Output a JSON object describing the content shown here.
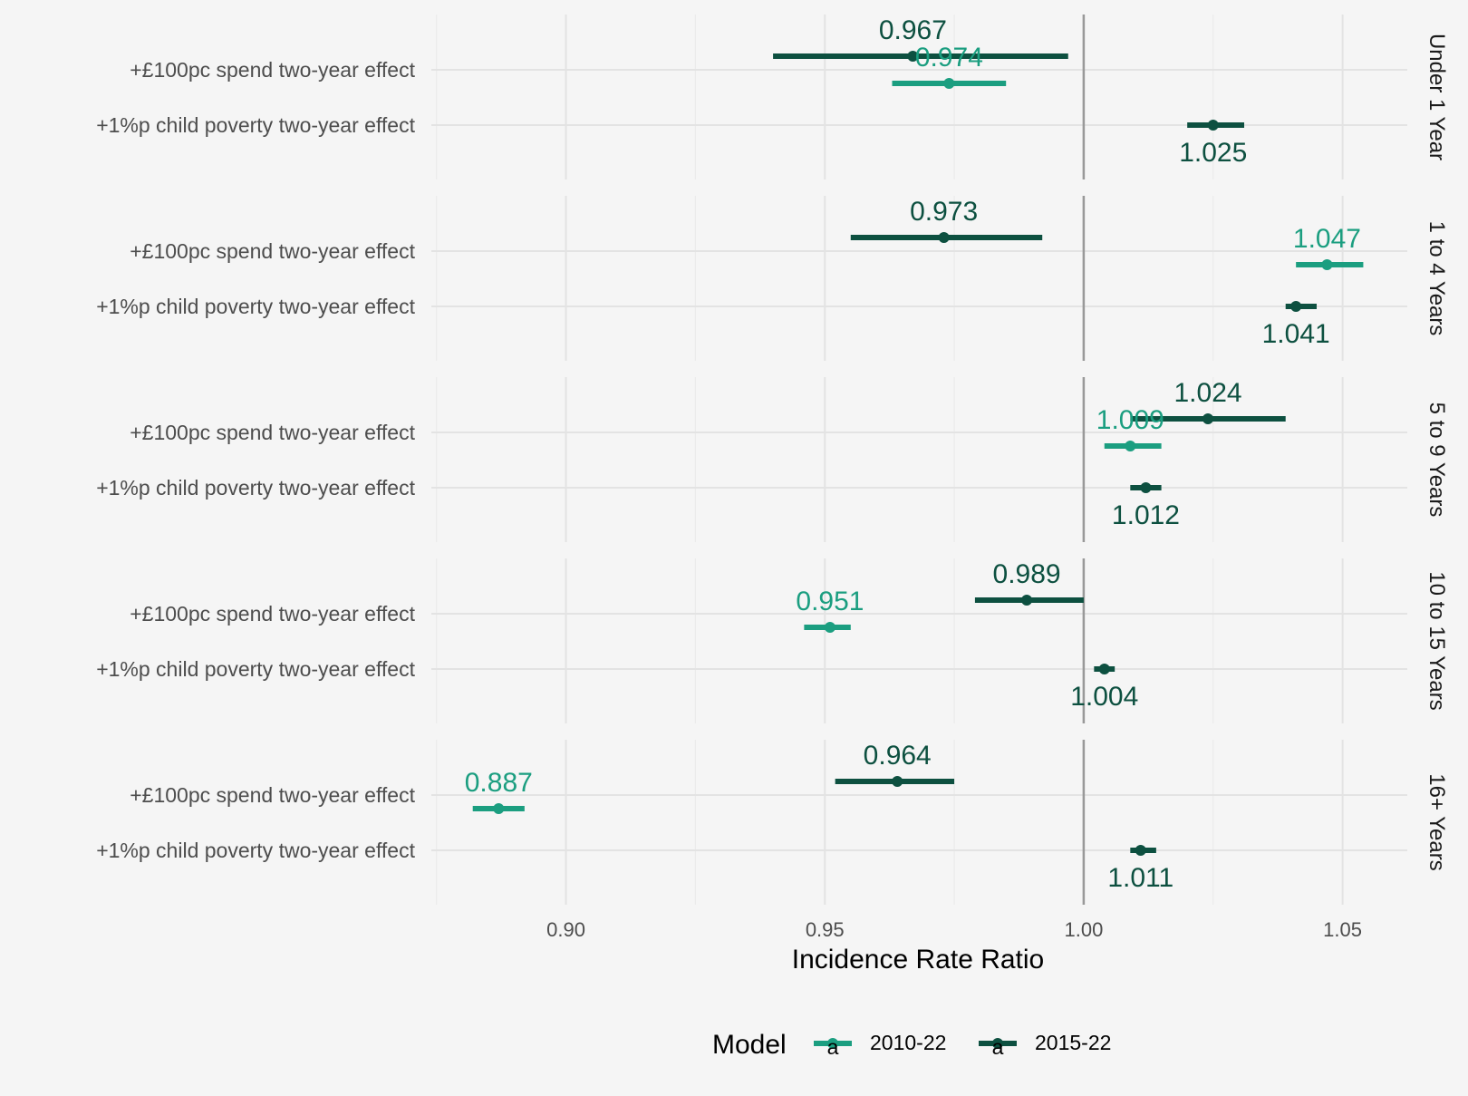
{
  "chart_data": {
    "type": "forest",
    "xlabel": "Incidence Rate Ratio",
    "x_ticks": [
      "0.90",
      "0.95",
      "1.00",
      "1.05"
    ],
    "x_tick_values": [
      0.9,
      0.95,
      1.0,
      1.05
    ],
    "xlim": [
      0.874,
      1.0625
    ],
    "reference_line": 1.0,
    "grid": true,
    "row_labels": [
      "+£100pc spend two-year effect",
      "+1%p child poverty two-year effect"
    ],
    "legend": {
      "title": "Model",
      "position": "bottom",
      "items": [
        {
          "name": "2010-22",
          "color": "#1b9e80",
          "glyph": "a"
        },
        {
          "name": "2015-22",
          "color": "#0d5040",
          "glyph": "a"
        }
      ]
    },
    "panels": [
      {
        "name": "Under 1 Year",
        "points": [
          {
            "row": 0,
            "series": "2015-22",
            "estimate": 0.967,
            "lower": 0.94,
            "upper": 0.997,
            "label": "0.967"
          },
          {
            "row": 0,
            "series": "2010-22",
            "estimate": 0.974,
            "lower": 0.963,
            "upper": 0.985,
            "label": "0.974"
          },
          {
            "row": 1,
            "series": "2015-22",
            "estimate": 1.025,
            "lower": 1.02,
            "upper": 1.031,
            "label": "1.025"
          }
        ]
      },
      {
        "name": "1 to 4 Years",
        "points": [
          {
            "row": 0,
            "series": "2015-22",
            "estimate": 0.973,
            "lower": 0.955,
            "upper": 0.992,
            "label": "0.973"
          },
          {
            "row": 0,
            "series": "2010-22",
            "estimate": 1.047,
            "lower": 1.041,
            "upper": 1.054,
            "label": "1.047"
          },
          {
            "row": 1,
            "series": "2015-22",
            "estimate": 1.041,
            "lower": 1.039,
            "upper": 1.045,
            "label": "1.041"
          }
        ]
      },
      {
        "name": "5 to 9 Years",
        "points": [
          {
            "row": 0,
            "series": "2015-22",
            "estimate": 1.024,
            "lower": 1.009,
            "upper": 1.039,
            "label": "1.024"
          },
          {
            "row": 0,
            "series": "2010-22",
            "estimate": 1.009,
            "lower": 1.004,
            "upper": 1.015,
            "label": "1.009"
          },
          {
            "row": 1,
            "series": "2015-22",
            "estimate": 1.012,
            "lower": 1.009,
            "upper": 1.015,
            "label": "1.012"
          }
        ]
      },
      {
        "name": "10 to 15 Years",
        "points": [
          {
            "row": 0,
            "series": "2015-22",
            "estimate": 0.989,
            "lower": 0.979,
            "upper": 1.0,
            "label": "0.989"
          },
          {
            "row": 0,
            "series": "2010-22",
            "estimate": 0.951,
            "lower": 0.946,
            "upper": 0.955,
            "label": "0.951"
          },
          {
            "row": 1,
            "series": "2015-22",
            "estimate": 1.004,
            "lower": 1.002,
            "upper": 1.006,
            "label": "1.004"
          }
        ]
      },
      {
        "name": "16+ Years",
        "points": [
          {
            "row": 0,
            "series": "2015-22",
            "estimate": 0.964,
            "lower": 0.952,
            "upper": 0.975,
            "label": "0.964"
          },
          {
            "row": 0,
            "series": "2010-22",
            "estimate": 0.887,
            "lower": 0.882,
            "upper": 0.892,
            "label": "0.887"
          },
          {
            "row": 1,
            "series": "2015-22",
            "estimate": 1.011,
            "lower": 1.009,
            "upper": 1.014,
            "label": "1.011"
          }
        ]
      }
    ]
  }
}
